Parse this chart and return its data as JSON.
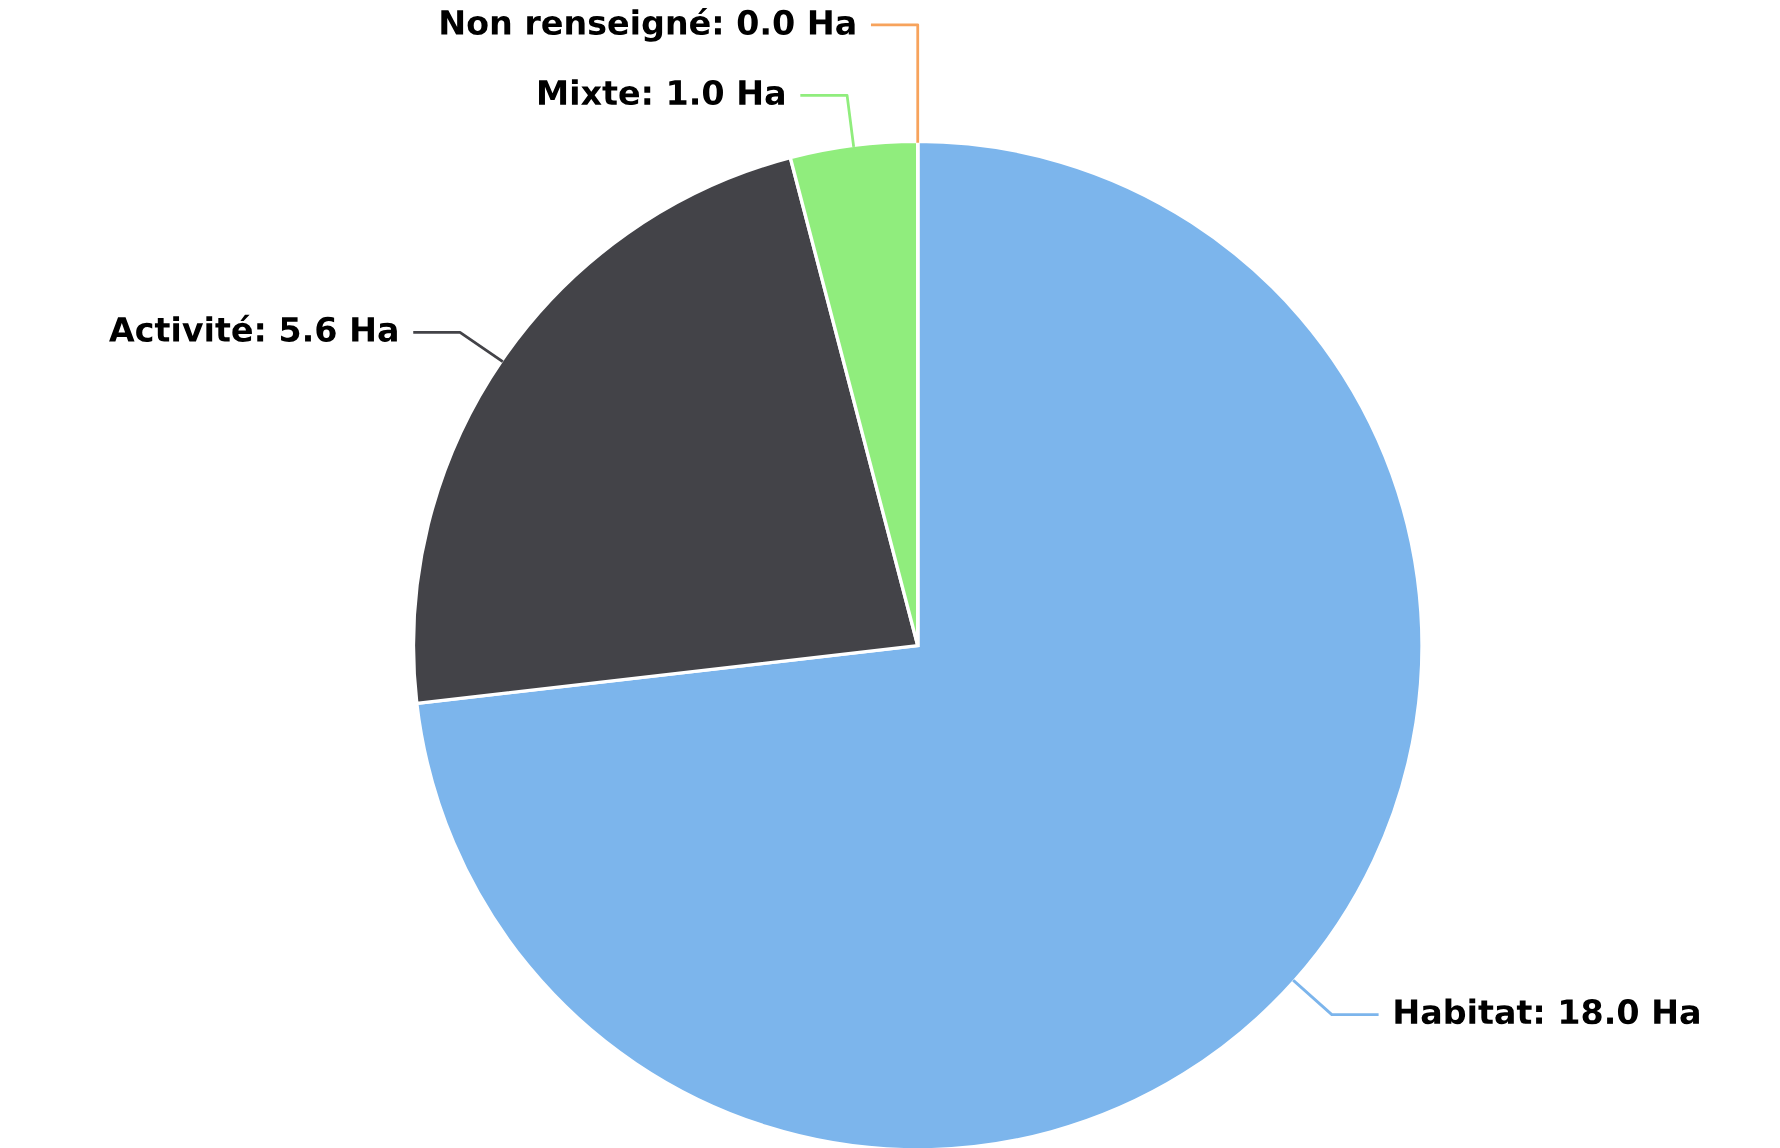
{
  "chart_data": {
    "type": "pie",
    "categories": [
      "Habitat: 18.0 Ha",
      "Activité: 5.6 Ha",
      "Mixte: 1.0 Ha",
      "Non renseigné: 0.0 Ha"
    ],
    "values": [
      18.0,
      5.6,
      1.0,
      0.0
    ],
    "colors": [
      "#7cb5ec",
      "#434348",
      "#90ed7d",
      "#f7a35c"
    ],
    "legend": false
  }
}
